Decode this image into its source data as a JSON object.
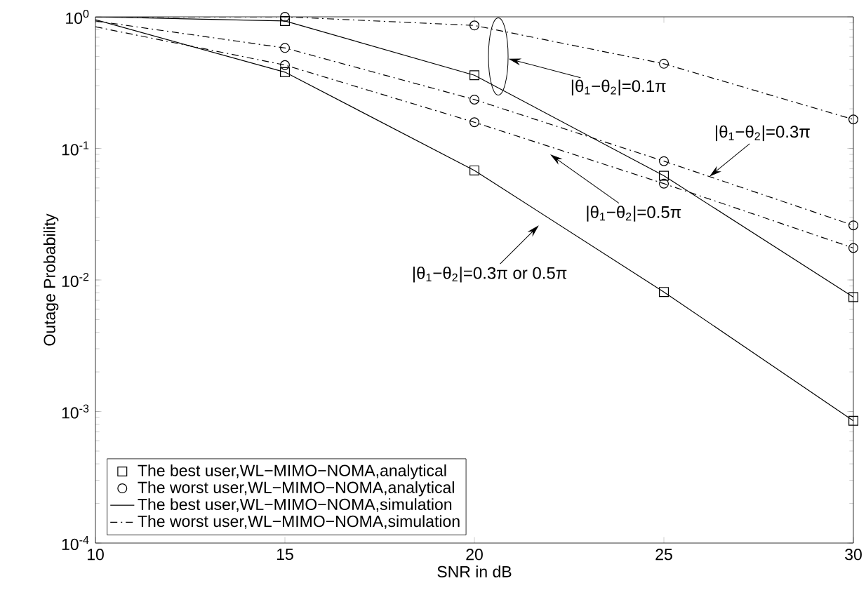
{
  "chart_data": {
    "type": "line",
    "xlabel": "SNR in dB",
    "ylabel": "Outage Probability",
    "log": "y",
    "grid": false,
    "legend": "bottom left",
    "xlim": [
      10,
      30
    ],
    "ylim": [
      0.0001,
      1
    ],
    "xticks": [
      10,
      15,
      20,
      25,
      30
    ],
    "yticks": [
      {
        "value": 0.0001,
        "label": "10$^{-4}$"
      },
      {
        "value": 0.001,
        "label": "10$^{-3}$"
      },
      {
        "value": 0.01,
        "label": "10$^{-2}$"
      },
      {
        "value": 0.1,
        "label": "10$^{-1}$"
      },
      {
        "value": 1,
        "label": "10$^{0}$"
      }
    ],
    "series": [
      {
        "name": "The best user,WL−MIMO−NOMA,analytical",
        "type": "scatter",
        "marker": "square",
        "color": "#000000",
        "x": [
          15,
          20,
          25,
          30,
          15,
          20,
          25,
          30
        ],
        "values": [
          0.93,
          0.36,
          0.062,
          0.0074,
          0.38,
          0.068,
          0.0081,
          0.00085
        ]
      },
      {
        "name": "The worst user,WL−MIMO−NOMA,analytical",
        "type": "scatter",
        "marker": "circle",
        "color": "#000000",
        "x": [
          15,
          20,
          25,
          30,
          15,
          20,
          25,
          30,
          15,
          20,
          25,
          30
        ],
        "values": [
          1.0,
          0.86,
          0.44,
          0.166,
          0.58,
          0.235,
          0.08,
          0.026,
          0.43,
          0.158,
          0.054,
          0.0175
        ]
      },
      {
        "name": "The best user,WL−MIMO−NOMA,simulation",
        "line_style": "solid",
        "color": "#000000",
        "x": [
          10,
          15,
          20,
          25,
          30
        ],
        "values": [
          1.0,
          0.93,
          0.36,
          0.062,
          0.0074
        ]
      },
      {
        "name": "The worst user,WL−MIMO−NOMA,simulation",
        "line_style": "dashdot",
        "color": "#000000",
        "x": [
          10,
          15,
          20,
          25,
          30
        ],
        "values": [
          1.0,
          1.0,
          0.86,
          0.44,
          0.166
        ]
      },
      {
        "line_style": "solid",
        "color": "#000000",
        "x": [
          10,
          15,
          20,
          25,
          30
        ],
        "values": [
          0.95,
          0.38,
          0.068,
          0.0081,
          0.00085
        ]
      },
      {
        "line_style": "dashdot",
        "color": "#000000",
        "x": [
          10,
          15,
          20,
          25,
          30
        ],
        "values": [
          0.93,
          0.58,
          0.235,
          0.08,
          0.026
        ]
      },
      {
        "line_style": "dashdot",
        "color": "#000000",
        "x": [
          10,
          15,
          20,
          25,
          30
        ],
        "values": [
          0.84,
          0.43,
          0.158,
          0.054,
          0.0175
        ]
      }
    ],
    "annotations": [
      "|θ$_{1}$−θ$_{2}$|=0.1π",
      {
        "text": "|θ$_{1}$−θ$_{2}$|=0.3π",
        "x": 26.2,
        "y": 0.061
      },
      {
        "text": "|θ$_{1}$−θ$_{2}$|=0.5π",
        "x": 22.0,
        "y": 0.09
      },
      "|θ$_{1}$−θ$_{2}$|=0.3π or 0.5π"
    ]
  }
}
